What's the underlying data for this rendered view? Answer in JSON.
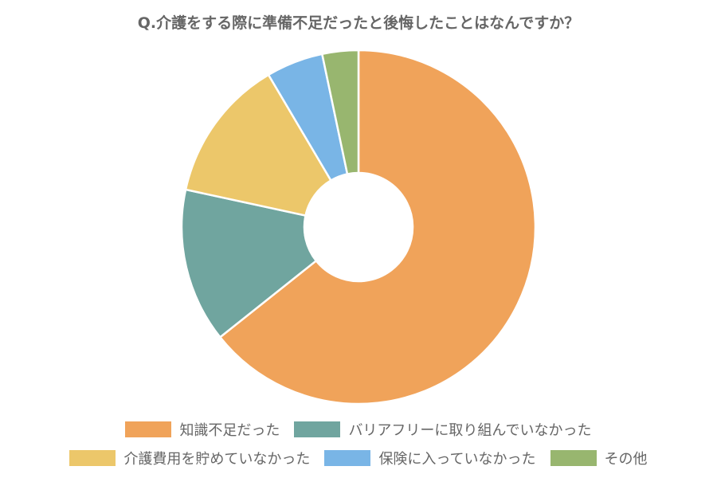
{
  "chart_data": {
    "type": "pie",
    "donut": true,
    "title": "Q.介護をする際に準備不足だったと後悔したことはなんですか？",
    "categories": [
      "知識不足だった",
      "バリアフリーに取り組んでいなかった",
      "介護費用を貯めていなかった",
      "保険に入っていなかった",
      "その他"
    ],
    "values": [
      64.3,
      14.1,
      13.1,
      5.2,
      3.3
    ],
    "unit": "%",
    "colors": [
      "#F0A35A",
      "#70A59F",
      "#ECC76A",
      "#79B5E6",
      "#98B66F"
    ],
    "legend_position": "bottom"
  }
}
